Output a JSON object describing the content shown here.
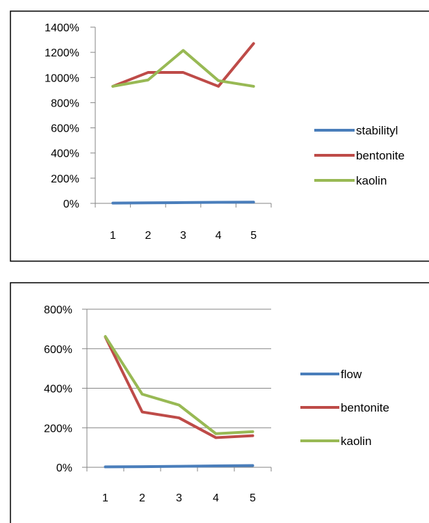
{
  "chart_data": [
    {
      "type": "line",
      "categories": [
        "1",
        "2",
        "3",
        "4",
        "5"
      ],
      "y_tick_labels": [
        "0%",
        "200%",
        "400%",
        "600%",
        "800%",
        "1000%",
        "1200%",
        "1400%"
      ],
      "ylim": [
        0,
        1400
      ],
      "grid": false,
      "legend_position": "right",
      "series": [
        {
          "name": "stabilityl",
          "color": "#4a7ebb",
          "values": [
            2,
            4,
            6,
            8,
            10
          ]
        },
        {
          "name": "bentonite",
          "color": "#be4b48",
          "values": [
            930,
            1040,
            1040,
            930,
            1270
          ]
        },
        {
          "name": "kaolin",
          "color": "#98b954",
          "values": [
            930,
            980,
            1215,
            975,
            930
          ]
        }
      ]
    },
    {
      "type": "line",
      "categories": [
        "1",
        "2",
        "3",
        "4",
        "5"
      ],
      "y_tick_labels": [
        "0%",
        "200%",
        "400%",
        "600%",
        "800%"
      ],
      "ylim": [
        0,
        800
      ],
      "grid": true,
      "legend_position": "right",
      "series": [
        {
          "name": "flow",
          "color": "#4a7ebb",
          "values": [
            2,
            3,
            5,
            7,
            9
          ]
        },
        {
          "name": "bentonite",
          "color": "#be4b48",
          "values": [
            660,
            280,
            250,
            150,
            160
          ]
        },
        {
          "name": "kaolin",
          "color": "#98b954",
          "values": [
            662,
            370,
            315,
            170,
            180
          ]
        }
      ]
    }
  ]
}
